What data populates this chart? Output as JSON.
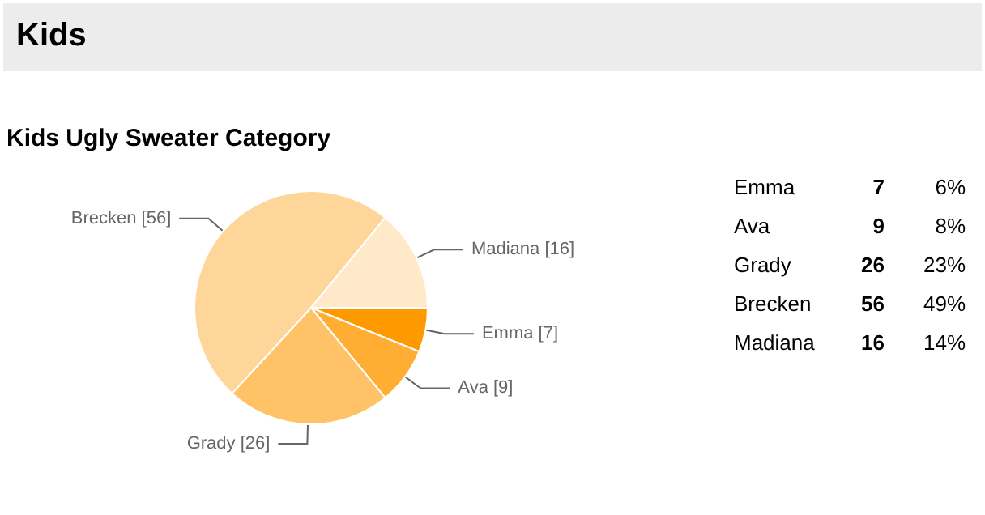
{
  "chart_data": [
    {
      "type": "pie",
      "title": "Kids",
      "subtitle": "Kids Ugly Sweater Category",
      "categories": [
        "Emma",
        "Ava",
        "Grady",
        "Brecken",
        "Madiana"
      ],
      "values": [
        7,
        9,
        26,
        56,
        16
      ],
      "colors": [
        "#ff9900",
        "#ffad33",
        "#ffc266",
        "#ffd699",
        "#ffe9c9"
      ],
      "value_labels": [
        "[7]",
        "[9]",
        "[26]",
        "[56]",
        "[16]"
      ],
      "legend": false
    },
    {
      "type": "other",
      "annotations": [
        "Emma",
        "7",
        "6%",
        "Ava",
        "9",
        "8%",
        "Grady",
        "26",
        "23%",
        "Brecken",
        "56",
        "49%",
        "Madiana",
        "16",
        "14%"
      ]
    }
  ]
}
